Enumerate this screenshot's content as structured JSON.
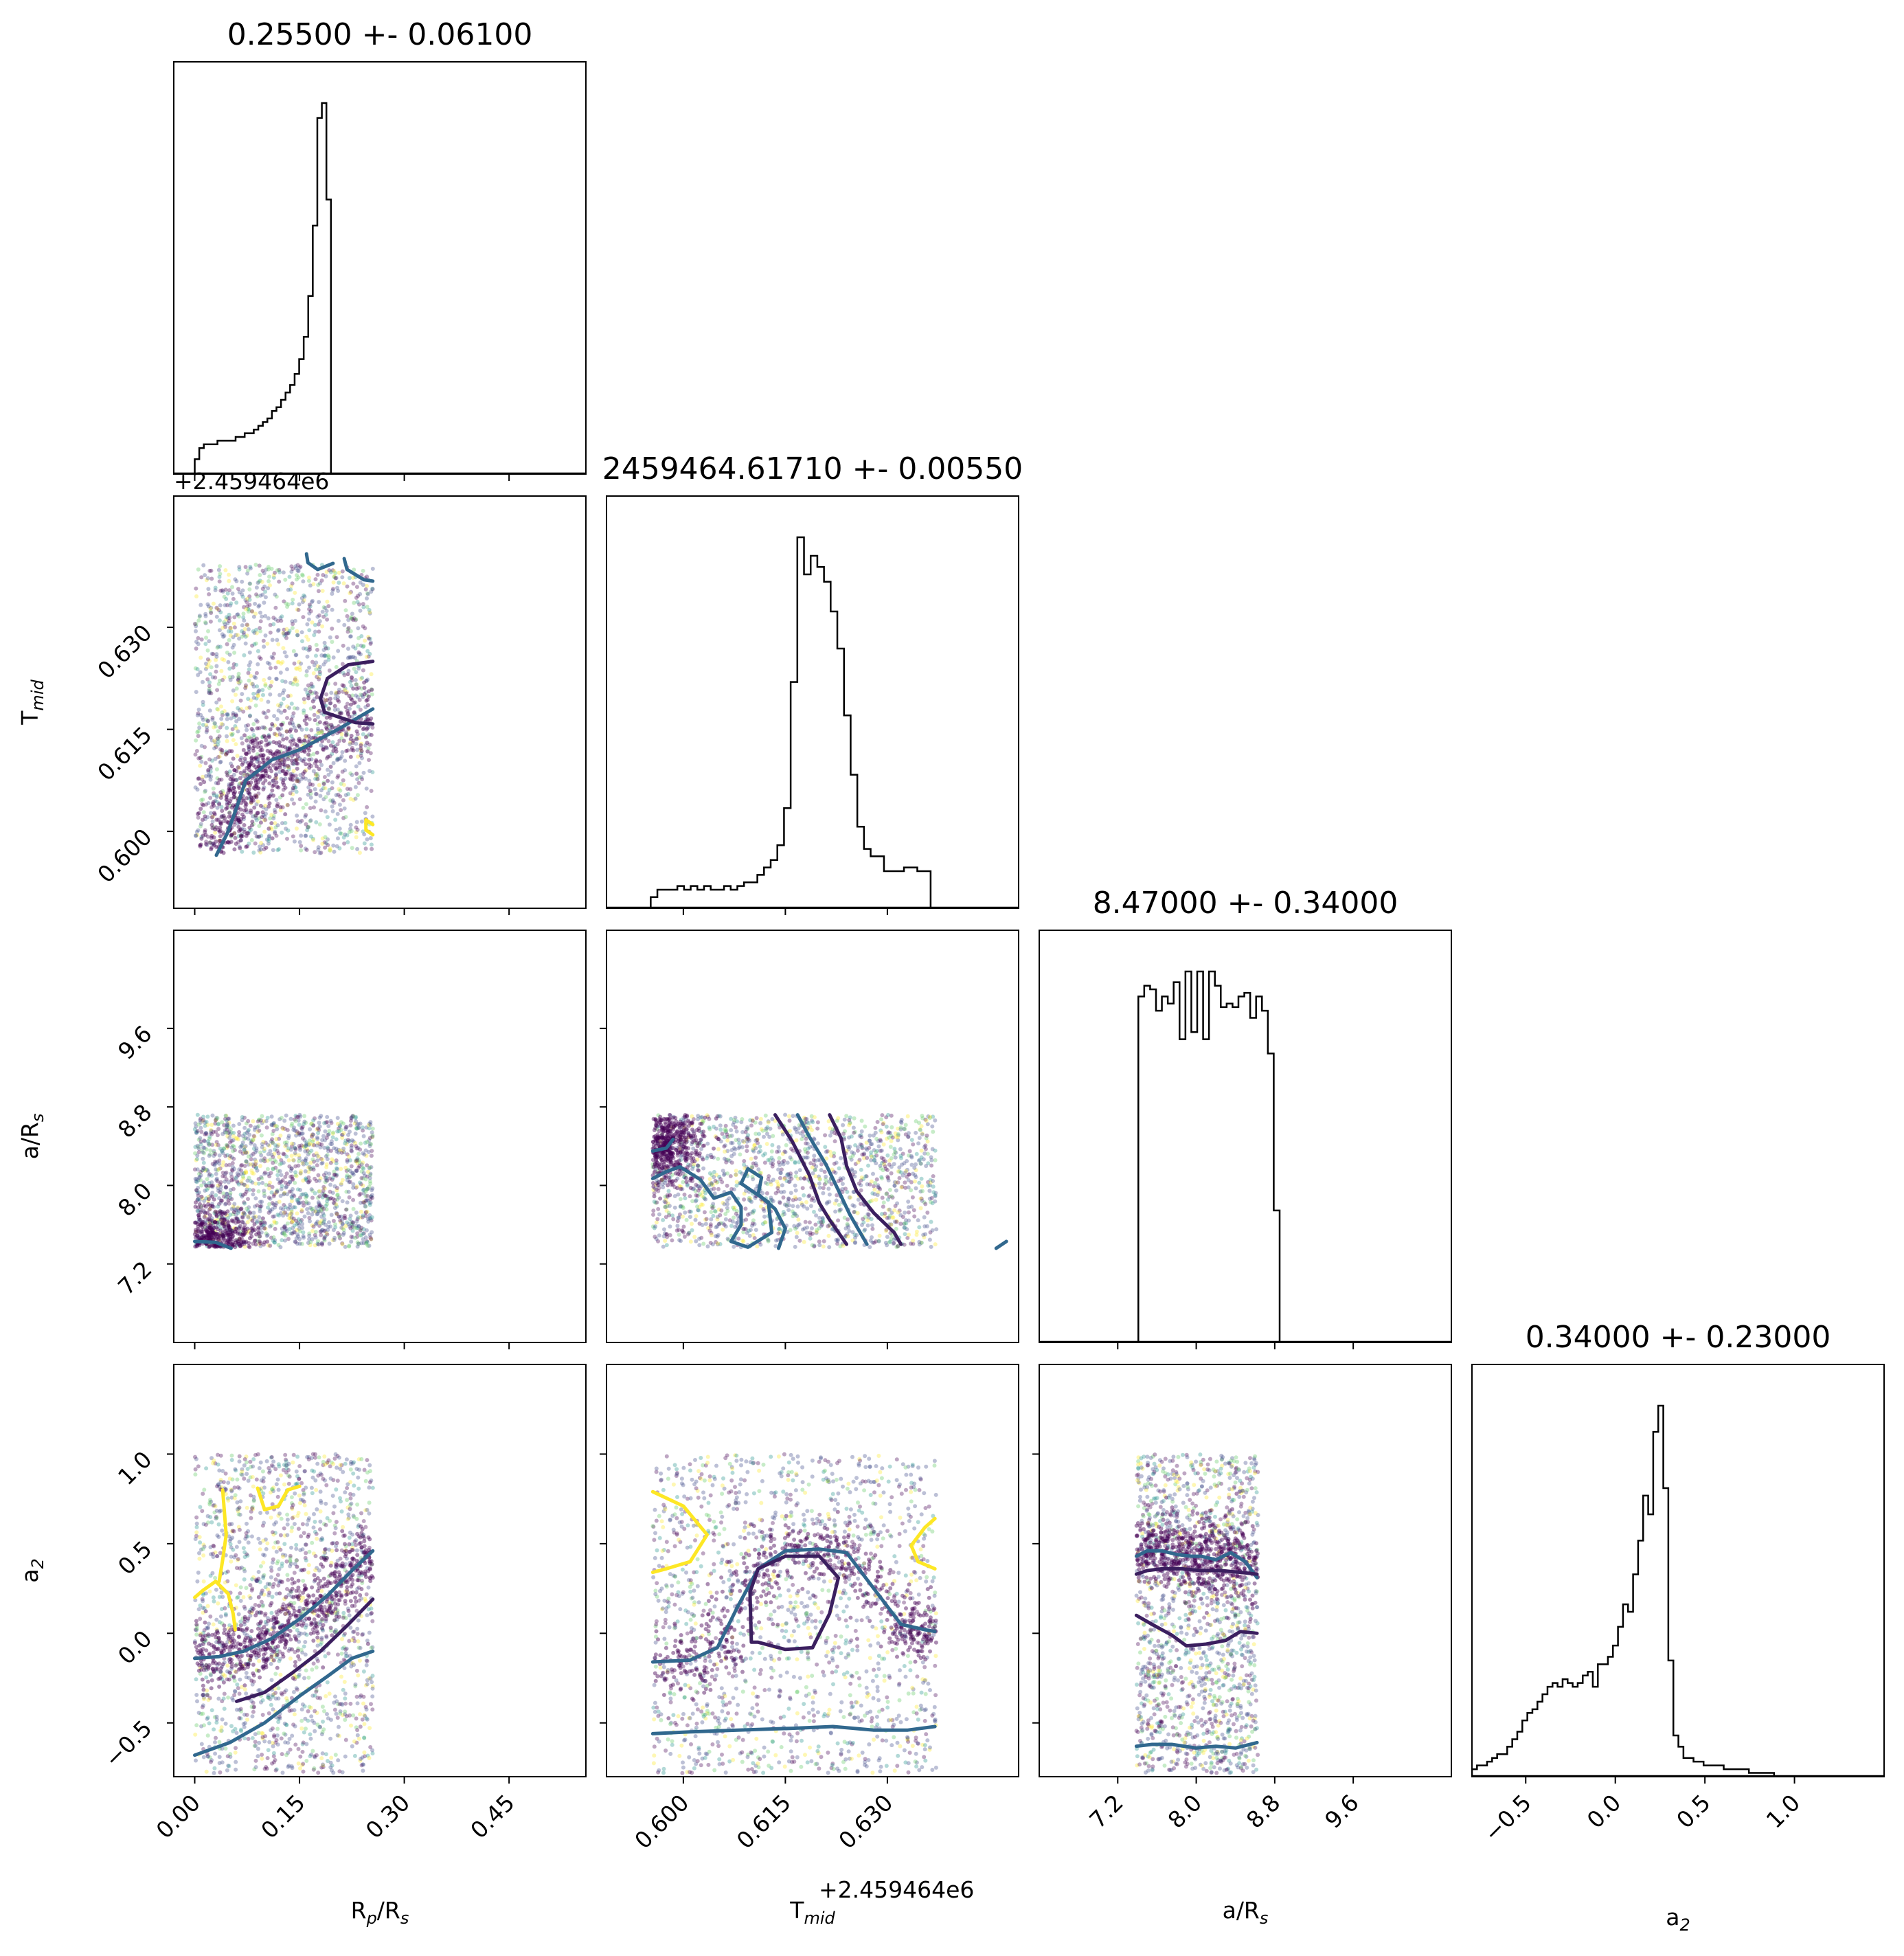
{
  "chart_data": {
    "type": "corner",
    "parameters": [
      "Rp/Rs",
      "Tmid",
      "a/Rs",
      "a2"
    ],
    "axis_labels": {
      "Rp/Rs": {
        "main": "R",
        "sub": "p",
        "rest": "/R",
        "sub2": "s"
      },
      "Tmid": {
        "main": "T",
        "sub": "mid"
      },
      "a/Rs": {
        "main": "a/R",
        "sub": "s"
      },
      "a2": {
        "main": "a",
        "sub": "2"
      }
    },
    "titles": [
      "0.25500 +- 0.06100",
      "2459464.61710 +- 0.00550",
      "8.47000 +- 0.34000",
      "0.34000 +- 0.23000"
    ],
    "offset_text": "+2.459464e6",
    "ranges": {
      "Rp/Rs": [
        -0.03,
        0.56
      ],
      "Tmid": [
        0.5887,
        0.6493
      ],
      "a/Rs": [
        6.4,
        10.6
      ],
      "a2": [
        -0.8,
        1.5
      ]
    },
    "ticks": {
      "Rp/Rs": [
        "0.00",
        "0.15",
        "0.30",
        "0.45"
      ],
      "Tmid": [
        "0.600",
        "0.615",
        "0.630"
      ],
      "a/Rs": [
        "7.2",
        "8.0",
        "8.8",
        "9.6"
      ],
      "a2": [
        "−0.5",
        "0.0",
        "0.5",
        "1.0"
      ]
    },
    "tick_values": {
      "Rp/Rs": [
        0.0,
        0.15,
        0.3,
        0.45
      ],
      "Tmid": [
        0.6,
        0.615,
        0.63
      ],
      "a/Rs": [
        7.2,
        8.0,
        8.8,
        9.6
      ],
      "a2": [
        -0.5,
        0.0,
        0.5,
        1.0
      ]
    },
    "histograms": {
      "Rp/Rs": {
        "bin_edges_start": 0.0,
        "bin_width": 0.0065,
        "counts": [
          4,
          7,
          8,
          8,
          8,
          9,
          9,
          9,
          9,
          10,
          10,
          11,
          11,
          12,
          13,
          14,
          15,
          17,
          18,
          20,
          22,
          24,
          27,
          31,
          37,
          48,
          67,
          96,
          100,
          74
        ]
      },
      "Tmid": {
        "bin_edges_start": 0.5952,
        "bin_width": 0.00098,
        "counts": [
          3,
          5,
          5,
          5,
          6,
          5,
          6,
          5,
          6,
          5,
          5,
          6,
          5,
          6,
          7,
          7,
          9,
          11,
          13,
          17,
          27,
          61,
          100,
          90,
          95,
          92,
          88,
          80,
          70,
          52,
          36,
          22,
          16,
          14,
          14,
          10,
          10,
          10,
          11,
          11,
          10,
          10
        ]
      },
      "a/Rs": {
        "bin_edges_start": 7.35,
        "bin_width": 0.06,
        "counts": [
          0,
          97,
          100,
          99,
          93,
          97,
          95,
          101,
          85,
          104,
          87,
          104,
          85,
          104,
          100,
          94,
          95,
          94,
          97,
          98,
          91,
          97,
          93,
          81,
          37,
          0
        ]
      },
      "a2": {
        "bin_edges_start": -0.8,
        "bin_width": 0.0281,
        "counts": [
          2,
          3,
          3,
          4,
          5,
          6,
          6,
          8,
          10,
          12,
          15,
          17,
          18,
          20,
          22,
          24,
          25,
          24,
          26,
          25,
          24,
          25,
          27,
          28,
          24,
          30,
          30,
          32,
          35,
          40,
          46,
          44,
          54,
          63,
          75,
          70,
          92,
          99,
          77,
          31,
          11,
          8,
          5,
          5,
          4,
          4,
          3,
          3,
          3,
          3,
          2,
          2,
          2,
          2,
          2,
          1,
          1,
          1,
          1,
          1
        ]
      }
    },
    "contours": {
      "Tmid_vs_Rp": [
        "0.031,0.5965 0.047,0.5998 0.060,0.6035 0.073,0.6075 0.092,0.6090 0.110,0.6105 0.150,0.6120 0.205,0.6150 0.255,0.6180",
        "0.255,0.6250 0.220,0.6245 0.190,0.6225 0.180,0.6195 0.186,0.6175 0.230,0.6160 0.255,0.6158",
        "0.160,0.6408 0.162,0.6395 0.176,0.6385 0.198,0.6394",
        "0.214,0.6401 0.218,0.6385 0.242,0.6370 0.255,0.6368",
        "0.255,0.6010 0.245,0.6017 0.245,0.6002 0.255,0.5995"
      ],
      "aRs_vs_Rp": [
        "0.000,7.43 0.030,7.42 0.052,7.36"
      ],
      "aRs_vs_Tmid": [
        "0.5955,8.35 0.5975,8.38 0.5985,8.47",
        "0.5955,8.07 0.5975,8.14 0.5995,8.19 0.6025,8.06 0.6045,7.87 0.6070,7.93 0.6085,7.78 0.6085,7.60 0.6070,7.43 0.6095,7.37 0.6130,7.52 0.6125,7.83 0.6085,8.02 0.6095,8.17 0.6115,8.08 0.6110,7.91 0.6135,7.76 0.6150,7.56 0.6140,7.36",
        "0.6135,8.72 0.6160,8.45 0.6185,8.11 0.6200,7.82 0.6215,7.65 0.6240,7.40",
        "0.6168,8.72 0.6185,8.50 0.6210,8.21 0.6228,7.95 0.6245,7.70 0.6270,7.40",
        "0.6215,8.72 0.6232,8.48 0.6240,8.20 0.6255,7.94 0.6280,7.72 0.6310,7.52 0.6320,7.40",
        "0.6475,7.43 0.6460,7.36"
      ],
      "a2_vs_Rp": [
        "0.000,-0.14 0.035,-0.13 0.070,-0.10 0.110,-0.03 0.150,0.08 0.190,0.21 0.225,0.35 0.255,0.46",
        "0.000,-0.68 0.050,-0.61 0.100,-0.50 0.150,-0.35 0.190,-0.24 0.225,-0.14 0.255,-0.10",
        "0.060,-0.38 0.100,-0.33 0.140,-0.22 0.180,-0.10 0.220,0.05 0.255,0.19",
        "0.000,0.20 0.012,0.24 0.030,0.29 0.048,0.22 0.055,0.11 0.058,0.02",
        "0.040,0.80 0.045,0.55 0.040,0.41 0.035,0.29",
        "0.090,0.81 0.100,0.69 0.120,0.71 0.133,0.80 0.150,0.82"
      ],
      "a2_vs_Tmid": [
        "0.5955,-0.16 0.6010,-0.15 0.6050,-0.08 0.6080,0.15 0.6110,0.36 0.6150,0.46 0.6200,0.47 0.6240,0.45 0.6280,0.25 0.6320,0.05 0.6355,0.02 0.6370,0.01",
        "0.6100,-0.05 0.6098,0.23 0.6110,0.36 0.6150,0.43 0.6200,0.43 0.6228,0.31 0.6215,0.11 0.6190,-0.08 0.6150,-0.09 0.6110,-0.05 0.6100,-0.05",
        "0.5955,-0.56 0.6010,-0.55 0.6080,-0.54 0.6160,-0.53 0.6220,-0.52 0.6280,-0.54 0.6330,-0.54 0.6370,-0.52",
        "0.5955,0.79 0.6000,0.71 0.6035,0.55 0.6010,0.40 0.5975,0.36 0.5955,0.34",
        "0.6370,0.64 0.6355,0.59 0.6335,0.49 0.6345,0.40 0.6370,0.36"
      ],
      "a2_vs_aRs": [
        "7.39,0.43 7.50,0.46 7.65,0.46 7.80,0.44 7.95,0.43 8.05,0.43 8.20,0.41 8.35,0.45 8.50,0.40 8.62,0.31",
        "7.39,0.33 7.50,0.35 7.65,0.36 7.85,0.36 8.05,0.35 8.25,0.35 8.45,0.34 8.62,0.33",
        "7.39,0.10 7.55,0.05 7.75,-0.01 7.90,-0.07 8.10,-0.06 8.30,-0.04 8.45,0.01 8.62,0.00",
        "7.39,-0.63 7.55,-0.62 7.75,-0.62 8.00,-0.64 8.20,-0.63 8.40,-0.64 8.62,-0.61"
      ]
    },
    "sample_boxes": {
      "Tmid_vs_Rp": {
        "x": [
          0.0,
          0.255
        ],
        "y": [
          0.5968,
          0.6392
        ]
      },
      "aRs_vs_Rp": {
        "x": [
          0.0,
          0.255
        ],
        "y": [
          7.37,
          8.72
        ]
      },
      "aRs_vs_Tmid": {
        "x": [
          0.5955,
          0.6372
        ],
        "y": [
          7.37,
          8.72
        ]
      },
      "a2_vs_Rp": {
        "x": [
          0.0,
          0.255
        ],
        "y": [
          -0.78,
          1.0
        ]
      },
      "a2_vs_Tmid": {
        "x": [
          0.5955,
          0.6372
        ],
        "y": [
          -0.78,
          1.0
        ]
      },
      "a2_vs_aRs": {
        "x": [
          7.39,
          8.63
        ],
        "y": [
          -0.78,
          1.0
        ]
      }
    },
    "colors": {
      "contour_inner": "#3b1f5f",
      "contour_mid": "#31688e",
      "contour_outer": "#fde725",
      "points_dense": "#440154",
      "points_mid": "#3e4a89",
      "points_teal": "#21918c",
      "points_green": "#5ec962",
      "points_yellow": "#fde725"
    }
  }
}
